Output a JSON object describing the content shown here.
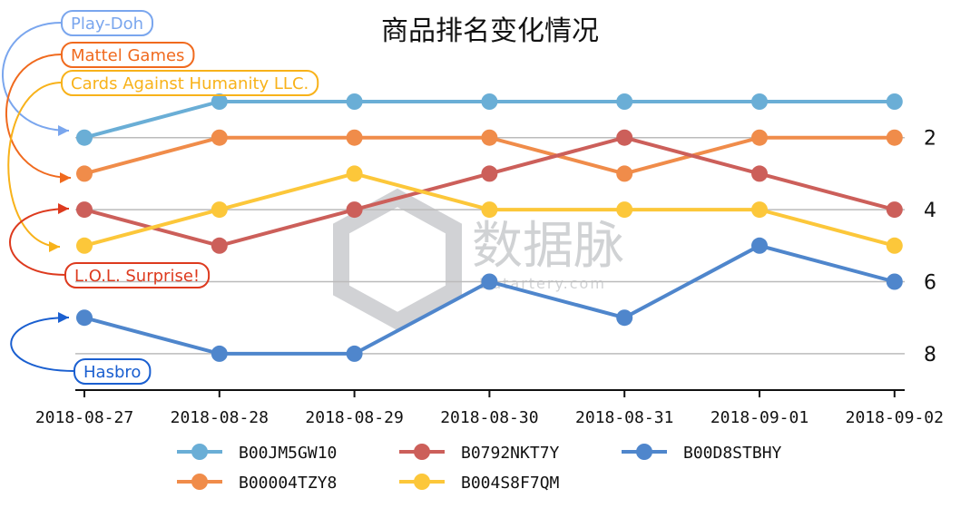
{
  "chart_data": {
    "type": "line",
    "title": "商品排名变化情况",
    "xlabel": "",
    "ylabel": "",
    "y_inverted": true,
    "ylim": [
      1,
      8
    ],
    "yticks": [
      2,
      4,
      6,
      8
    ],
    "grid": true,
    "legend_position": "bottom",
    "categories": [
      "2018-08-27",
      "2018-08-28",
      "2018-08-29",
      "2018-08-30",
      "2018-08-31",
      "2018-09-01",
      "2018-09-02"
    ],
    "series": [
      {
        "name": "B00JM5GW10",
        "color": "#6aaed6",
        "values": [
          2,
          1,
          1,
          1,
          1,
          1,
          1
        ]
      },
      {
        "name": "B00004TZY8",
        "color": "#f08c4a",
        "values": [
          3,
          2,
          2,
          2,
          3,
          2,
          2
        ]
      },
      {
        "name": "B0792NKT7Y",
        "color": "#cc5f5a",
        "values": [
          4,
          5,
          4,
          3,
          2,
          3,
          4
        ]
      },
      {
        "name": "B004S8F7QM",
        "color": "#fcc73a",
        "values": [
          5,
          4,
          3,
          4,
          4,
          4,
          5
        ]
      },
      {
        "name": "B00D8STBHY",
        "color": "#4f86cc",
        "values": [
          7,
          8,
          8,
          6,
          7,
          5,
          6
        ]
      }
    ],
    "annotations": [
      {
        "text": "Play-Doh",
        "color": "#7aa6ee",
        "series": 0
      },
      {
        "text": "Mattel Games",
        "color": "#f06a1e",
        "series": 1
      },
      {
        "text": "Cards Against Humanity LLC.",
        "color": "#f8b21a",
        "series": 3
      },
      {
        "text": "L.O.L. Surprise!",
        "color": "#dd3a1e",
        "series": 2
      },
      {
        "text": "Hasbro",
        "color": "#1a5fd0",
        "series": 4
      }
    ]
  },
  "watermark": {
    "name": "数据脉",
    "url": "Datartery.com"
  }
}
